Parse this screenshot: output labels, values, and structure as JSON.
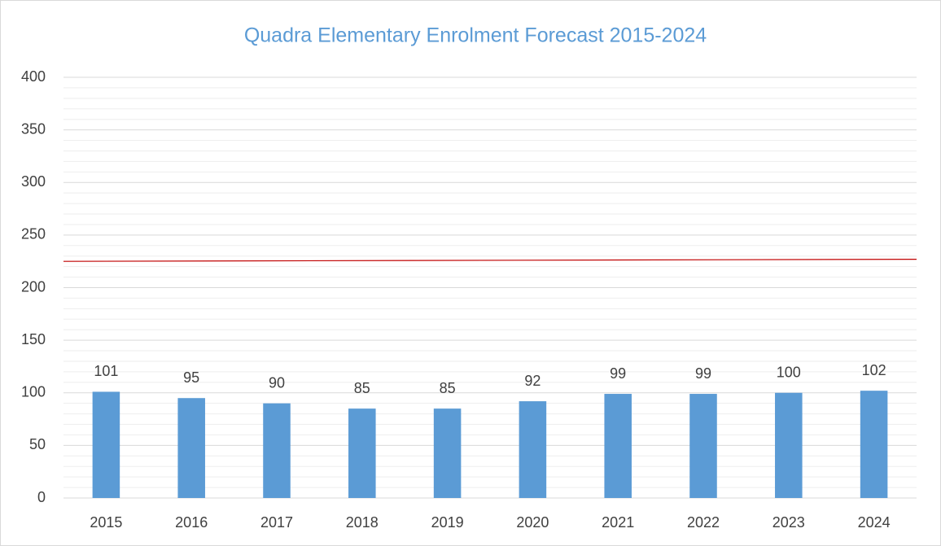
{
  "chart_data": {
    "type": "bar",
    "title": "Quadra Elementary Enrolment Forecast 2015-2024",
    "categories": [
      "2015",
      "2016",
      "2017",
      "2018",
      "2019",
      "2020",
      "2021",
      "2022",
      "2023",
      "2024"
    ],
    "values": [
      101,
      95,
      90,
      85,
      85,
      92,
      99,
      99,
      100,
      102
    ],
    "color": "#5b9bd5",
    "ylim": [
      0,
      400
    ],
    "yticks": [
      0,
      50,
      100,
      150,
      200,
      250,
      300,
      350,
      400
    ],
    "minor_yticks": [
      10,
      20,
      30,
      40,
      60,
      70,
      80,
      90,
      110,
      120,
      130,
      140,
      160,
      170,
      180,
      190,
      210,
      220,
      230,
      240,
      260,
      270,
      280,
      290,
      310,
      320,
      330,
      340,
      360,
      370,
      380,
      390
    ],
    "grid": true,
    "reference_line": {
      "start": 225,
      "end": 227,
      "color": "#c00000"
    }
  }
}
